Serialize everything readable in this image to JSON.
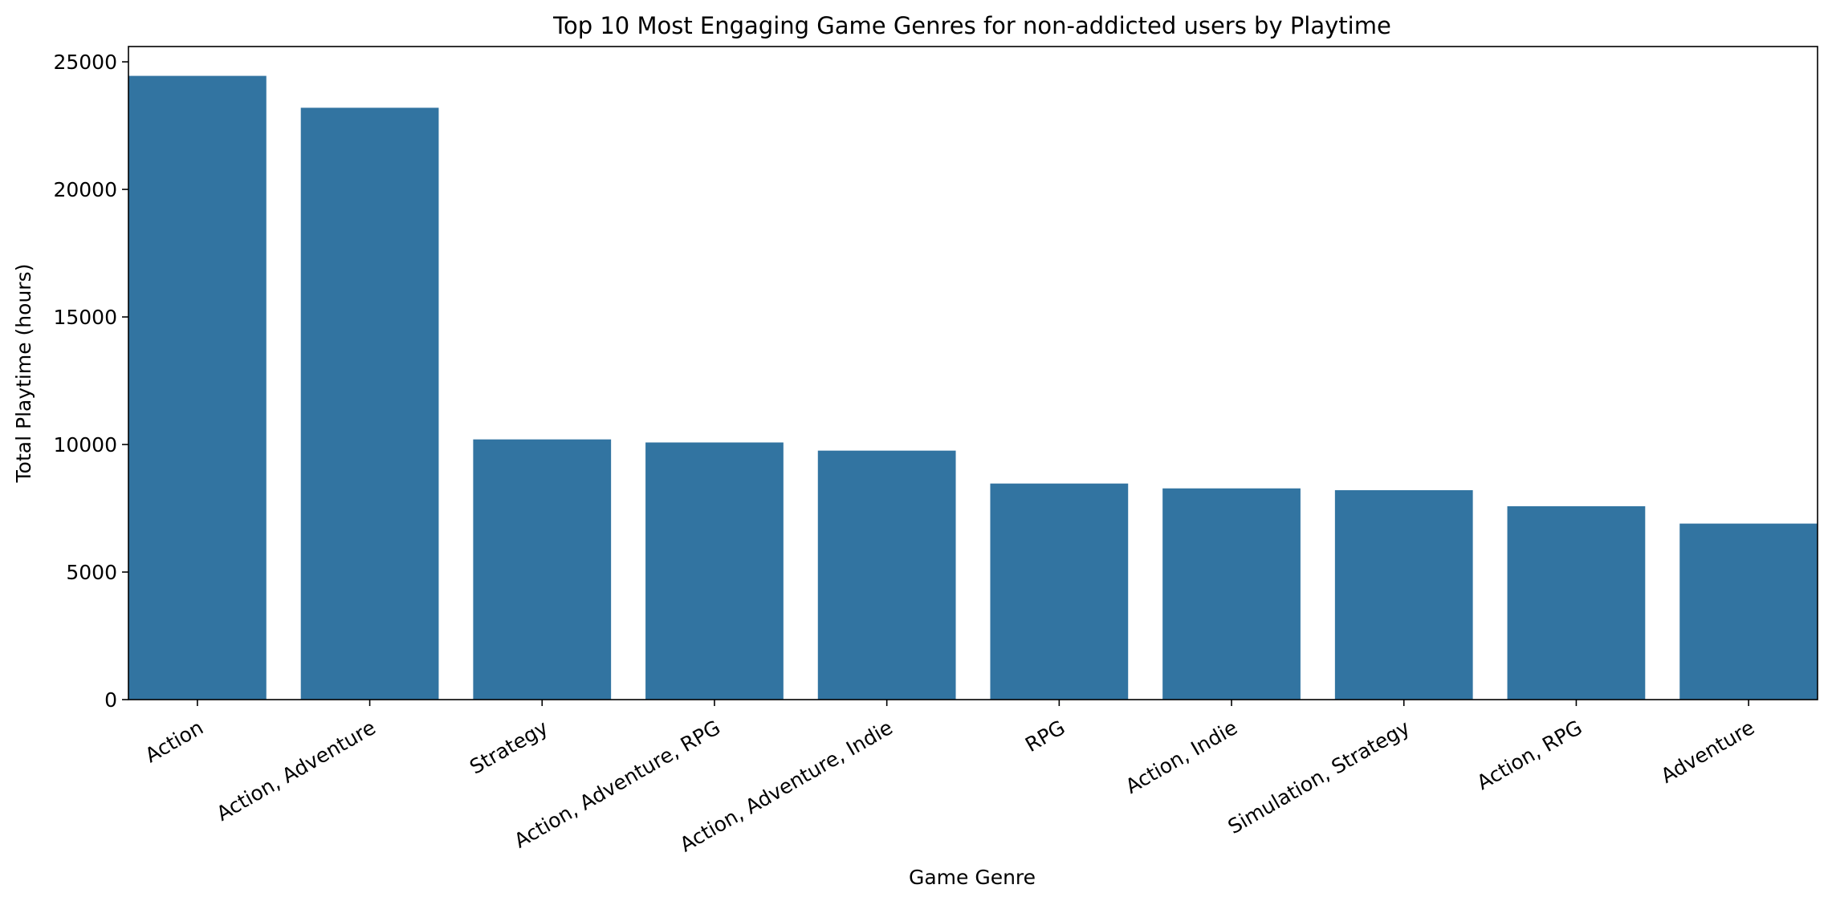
{
  "chart_data": {
    "type": "bar",
    "title": "Top 10 Most Engaging Game Genres for non-addicted users by Playtime",
    "xlabel": "Game Genre",
    "ylabel": "Total Playtime (hours)",
    "categories": [
      "Action",
      "Action, Adventure",
      "Strategy",
      "Action, Adventure, RPG",
      "Action, Adventure, Indie",
      "RPG",
      "Action, Indie",
      "Simulation, Strategy",
      "Action, RPG",
      "Adventure"
    ],
    "values": [
      24450,
      23200,
      10200,
      10080,
      9760,
      8470,
      8280,
      8210,
      7580,
      6900
    ],
    "ylim": [
      0,
      25600
    ],
    "yticks": [
      0,
      5000,
      10000,
      15000,
      20000,
      25000
    ],
    "ytick_labels": [
      "0",
      "5000",
      "10000",
      "15000",
      "20000",
      "25000"
    ],
    "color": "#3274a1",
    "grid": false,
    "legend": "none"
  }
}
